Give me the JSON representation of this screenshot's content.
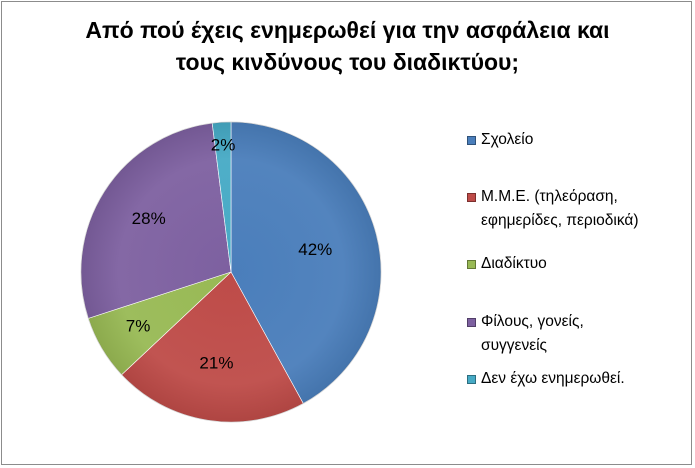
{
  "chart_data": {
    "type": "pie",
    "title": "Από πού έχεις ενημερωθεί για την ασφάλεια και\nτους κινδύνους του διαδικτύου;",
    "legend_position": "right",
    "slices": [
      {
        "label": "Σχολείο",
        "legend_text": "Σχολείο",
        "value": 42,
        "value_label": "42%",
        "color": "#4a7ebb"
      },
      {
        "label": "Μ.Μ.Ε. (τηλεόραση, εφημερίδες, περιοδικά)",
        "legend_text": "Μ.Μ.Ε. (τηλεόραση,\nεφημερίδες, περιοδικά)",
        "value": 21,
        "value_label": "21%",
        "color": "#be4b48"
      },
      {
        "label": "Διαδίκτυο",
        "legend_text": "Διαδίκτυο",
        "value": 7,
        "value_label": "7%",
        "color": "#98b954"
      },
      {
        "label": "Φίλους, γονείς, συγγενείς",
        "legend_text": "Φίλους, γονείς,\nσυγγενείς",
        "value": 28,
        "value_label": "28%",
        "color": "#7d60a0"
      },
      {
        "label": "Δεν έχω ενημερωθεί.",
        "legend_text": "Δεν έχω ενημερωθεί.",
        "value": 2,
        "value_label": "2%",
        "color": "#46aac5"
      }
    ]
  }
}
